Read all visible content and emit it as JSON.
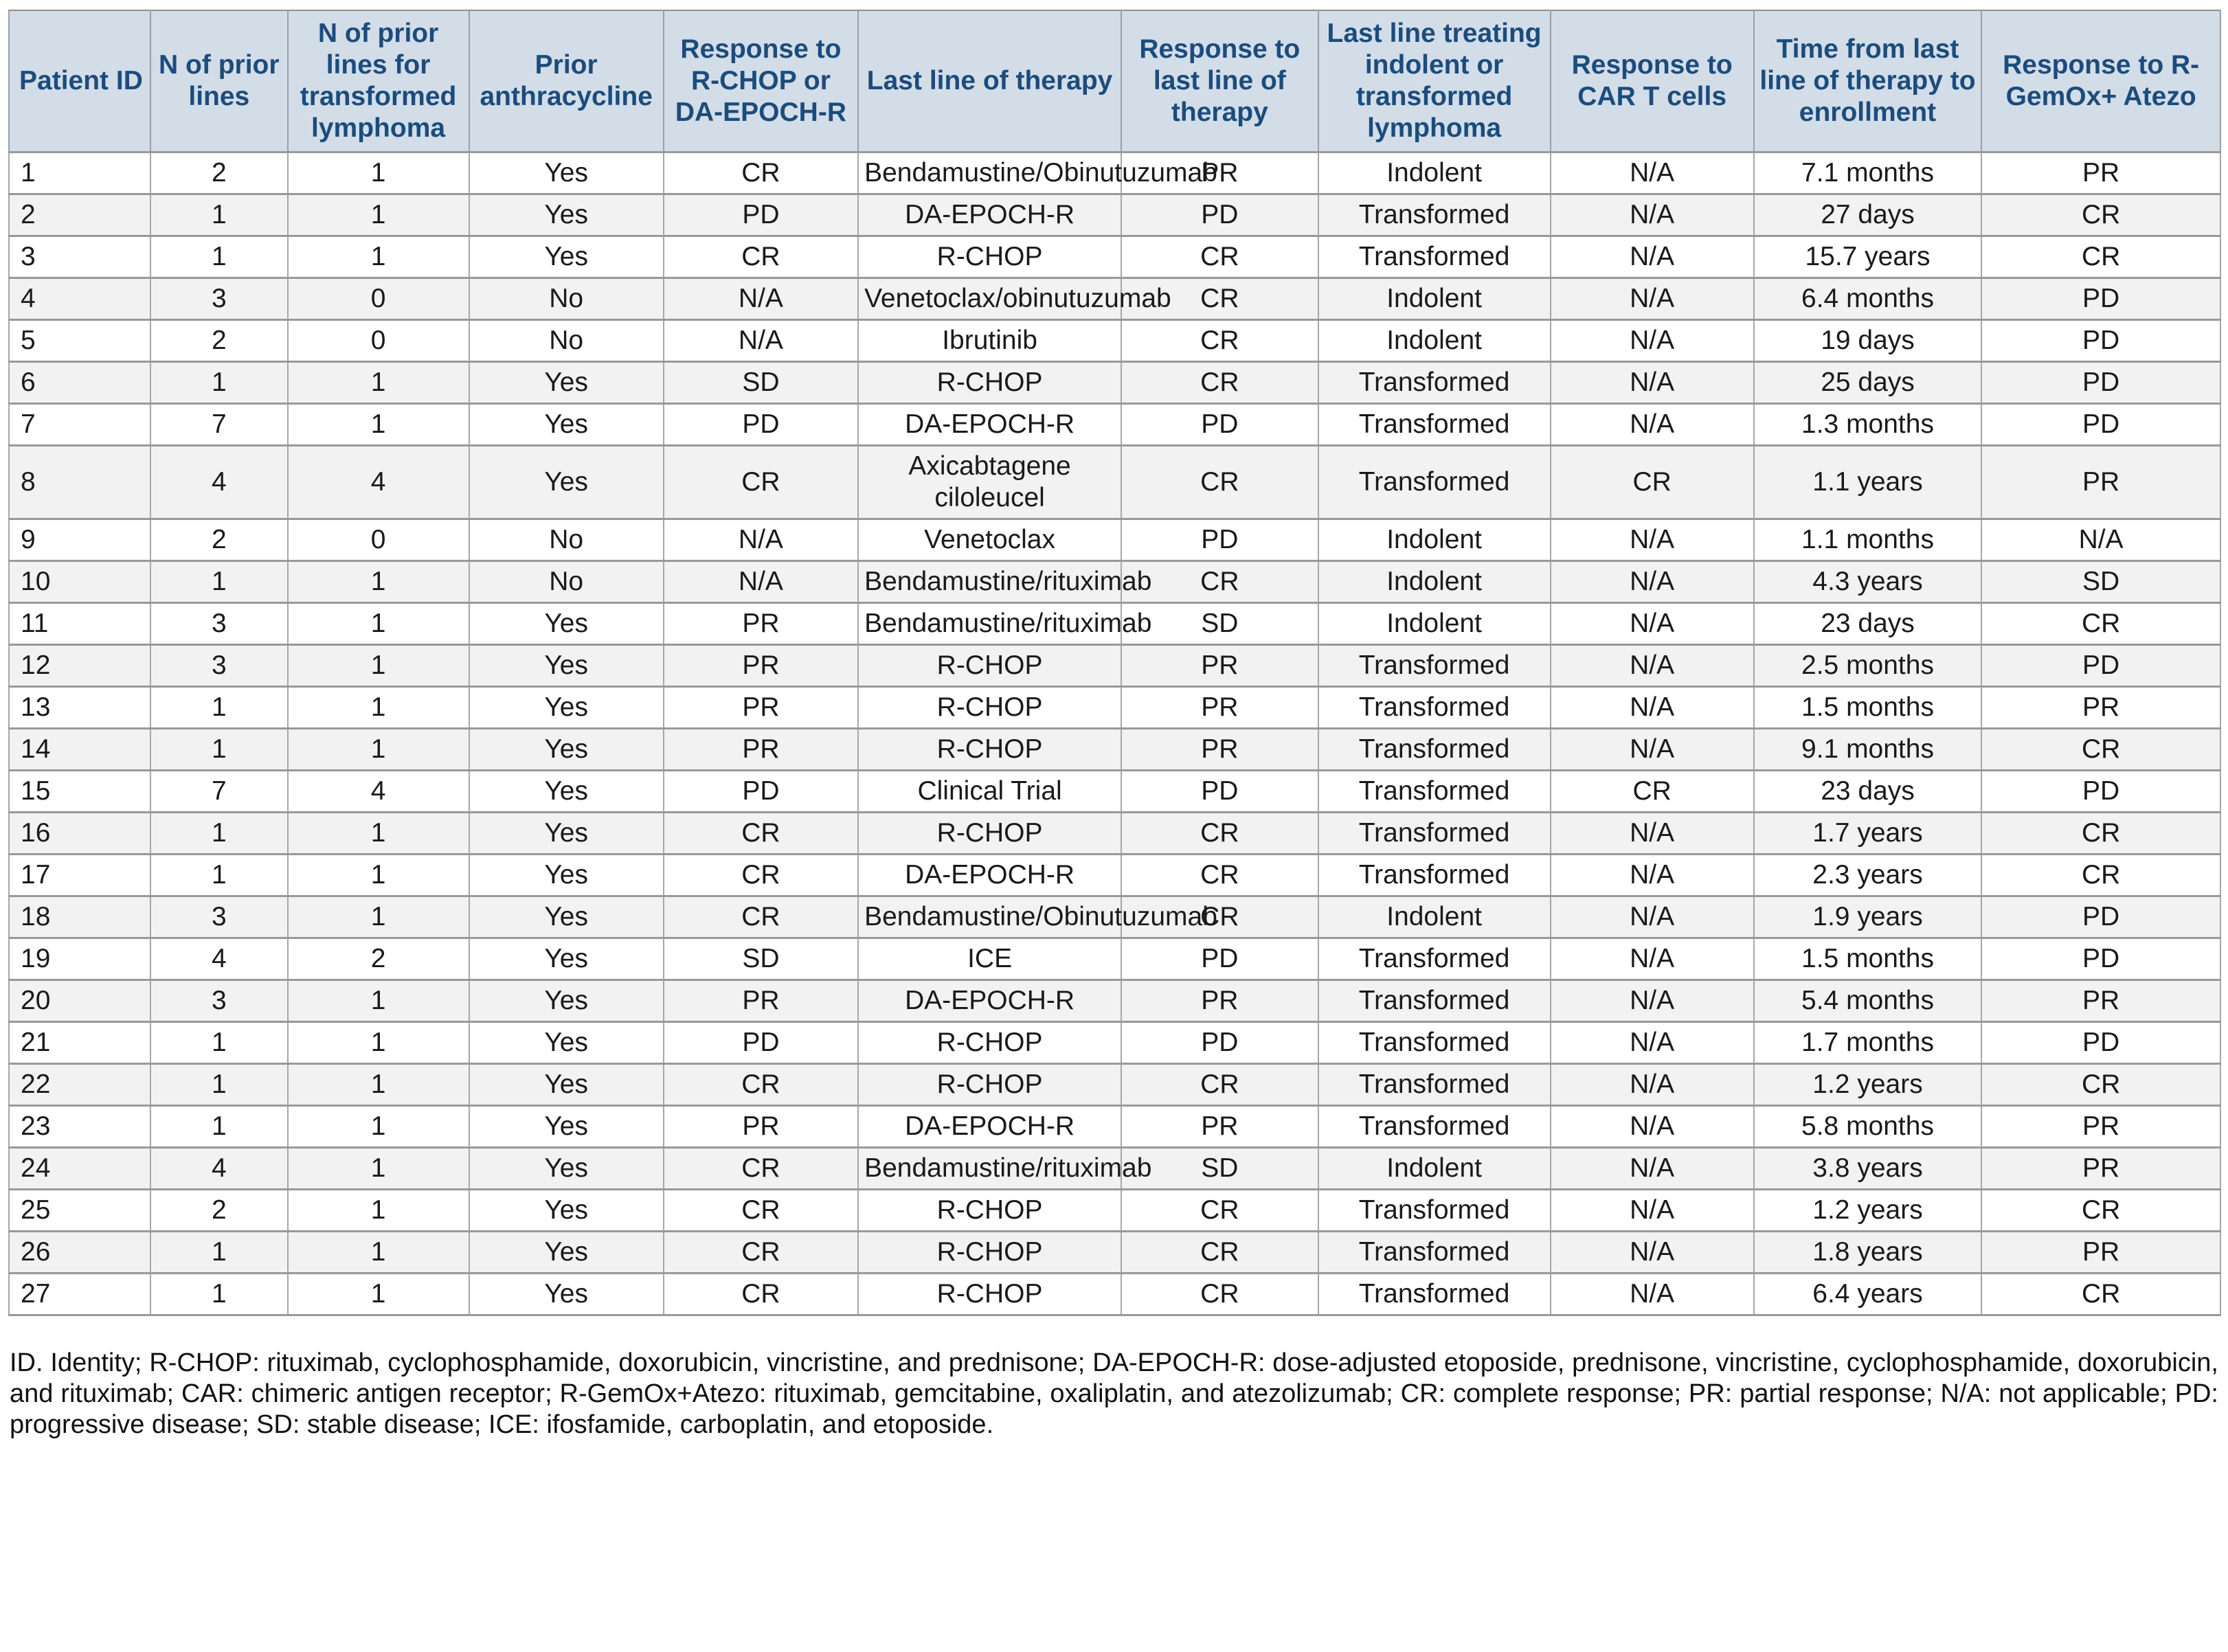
{
  "table": {
    "columns": [
      "Patient ID",
      "N of prior lines",
      "N of prior lines for transformed lymphoma",
      "Prior anthracycline",
      "Response to R-CHOP or DA-EPOCH-R",
      "Last line of therapy",
      "Response to last line of therapy",
      "Last line treating indolent or transformed lymphoma",
      "Response to CAR T cells",
      "Time from last line of therapy to enrollment",
      "Response to R-GemOx+ Atezo"
    ],
    "rows": [
      [
        "1",
        "2",
        "1",
        "Yes",
        "CR",
        "Bendamustine/Obinutuzumab",
        "PR",
        "Indolent",
        "N/A",
        "7.1 months",
        "PR"
      ],
      [
        "2",
        "1",
        "1",
        "Yes",
        "PD",
        "DA-EPOCH-R",
        "PD",
        "Transformed",
        "N/A",
        "27 days",
        "CR"
      ],
      [
        "3",
        "1",
        "1",
        "Yes",
        "CR",
        "R-CHOP",
        "CR",
        "Transformed",
        "N/A",
        "15.7 years",
        "CR"
      ],
      [
        "4",
        "3",
        "0",
        "No",
        "N/A",
        "Venetoclax/obinutuzumab",
        "CR",
        "Indolent",
        "N/A",
        "6.4 months",
        "PD"
      ],
      [
        "5",
        "2",
        "0",
        "No",
        "N/A",
        "Ibrutinib",
        "CR",
        "Indolent",
        "N/A",
        "19 days",
        "PD"
      ],
      [
        "6",
        "1",
        "1",
        "Yes",
        "SD",
        "R-CHOP",
        "CR",
        "Transformed",
        "N/A",
        "25 days",
        "PD"
      ],
      [
        "7",
        "7",
        "1",
        "Yes",
        "PD",
        "DA-EPOCH-R",
        "PD",
        "Transformed",
        "N/A",
        "1.3 months",
        "PD"
      ],
      [
        "8",
        "4",
        "4",
        "Yes",
        "CR",
        "Axicabtagene ciloleucel",
        "CR",
        "Transformed",
        "CR",
        "1.1 years",
        "PR"
      ],
      [
        "9",
        "2",
        "0",
        "No",
        "N/A",
        "Venetoclax",
        "PD",
        "Indolent",
        "N/A",
        "1.1 months",
        "N/A"
      ],
      [
        "10",
        "1",
        "1",
        "No",
        "N/A",
        "Bendamustine/rituximab",
        "CR",
        "Indolent",
        "N/A",
        "4.3 years",
        "SD"
      ],
      [
        "11",
        "3",
        "1",
        "Yes",
        "PR",
        "Bendamustine/rituximab",
        "SD",
        "Indolent",
        "N/A",
        "23 days",
        "CR"
      ],
      [
        "12",
        "3",
        "1",
        "Yes",
        "PR",
        "R-CHOP",
        "PR",
        "Transformed",
        "N/A",
        "2.5 months",
        "PD"
      ],
      [
        "13",
        "1",
        "1",
        "Yes",
        "PR",
        "R-CHOP",
        "PR",
        "Transformed",
        "N/A",
        "1.5 months",
        "PR"
      ],
      [
        "14",
        "1",
        "1",
        "Yes",
        "PR",
        "R-CHOP",
        "PR",
        "Transformed",
        "N/A",
        "9.1 months",
        "CR"
      ],
      [
        "15",
        "7",
        "4",
        "Yes",
        "PD",
        "Clinical Trial",
        "PD",
        "Transformed",
        "CR",
        "23 days",
        "PD"
      ],
      [
        "16",
        "1",
        "1",
        "Yes",
        "CR",
        "R-CHOP",
        "CR",
        "Transformed",
        "N/A",
        "1.7 years",
        "CR"
      ],
      [
        "17",
        "1",
        "1",
        "Yes",
        "CR",
        "DA-EPOCH-R",
        "CR",
        "Transformed",
        "N/A",
        "2.3 years",
        "CR"
      ],
      [
        "18",
        "3",
        "1",
        "Yes",
        "CR",
        "Bendamustine/Obinutuzumab",
        "CR",
        "Indolent",
        "N/A",
        "1.9 years",
        "PD"
      ],
      [
        "19",
        "4",
        "2",
        "Yes",
        "SD",
        "ICE",
        "PD",
        "Transformed",
        "N/A",
        "1.5 months",
        "PD"
      ],
      [
        "20",
        "3",
        "1",
        "Yes",
        "PR",
        "DA-EPOCH-R",
        "PR",
        "Transformed",
        "N/A",
        "5.4 months",
        "PR"
      ],
      [
        "21",
        "1",
        "1",
        "Yes",
        "PD",
        "R-CHOP",
        "PD",
        "Transformed",
        "N/A",
        "1.7 months",
        "PD"
      ],
      [
        "22",
        "1",
        "1",
        "Yes",
        "CR",
        "R-CHOP",
        "CR",
        "Transformed",
        "N/A",
        "1.2 years",
        "CR"
      ],
      [
        "23",
        "1",
        "1",
        "Yes",
        "PR",
        "DA-EPOCH-R",
        "PR",
        "Transformed",
        "N/A",
        "5.8 months",
        "PR"
      ],
      [
        "24",
        "4",
        "1",
        "Yes",
        "CR",
        "Bendamustine/rituximab",
        "SD",
        "Indolent",
        "N/A",
        "3.8 years",
        "PR"
      ],
      [
        "25",
        "2",
        "1",
        "Yes",
        "CR",
        "R-CHOP",
        "CR",
        "Transformed",
        "N/A",
        "1.2 years",
        "CR"
      ],
      [
        "26",
        "1",
        "1",
        "Yes",
        "CR",
        "R-CHOP",
        "CR",
        "Transformed",
        "N/A",
        "1.8 years",
        "PR"
      ],
      [
        "27",
        "1",
        "1",
        "Yes",
        "CR",
        "R-CHOP",
        "CR",
        "Transformed",
        "N/A",
        "6.4 years",
        "CR"
      ]
    ]
  },
  "footnote": "ID. Identity; R-CHOP: rituximab, cyclophosphamide, doxorubicin, vincristine, and prednisone; DA-EPOCH-R: dose-adjusted etoposide, prednisone, vincristine, cyclophosphamide, doxorubicin, and rituximab; CAR: chimeric antigen receptor; R-GemOx+Atezo: rituximab, gemcitabine, oxaliplatin, and atezolizumab; CR: complete response; PR: partial response; N/A: not applicable; PD: progressive disease; SD: stable disease; ICE: ifosfamide, carboplatin, and etoposide.",
  "colors": {
    "header_bg": "#d3dde7",
    "header_text": "#1b4c7e",
    "row_alt_bg": "#f2f2f2",
    "border_horizontal": "#999999",
    "border_vertical": "#a7a7a7"
  }
}
